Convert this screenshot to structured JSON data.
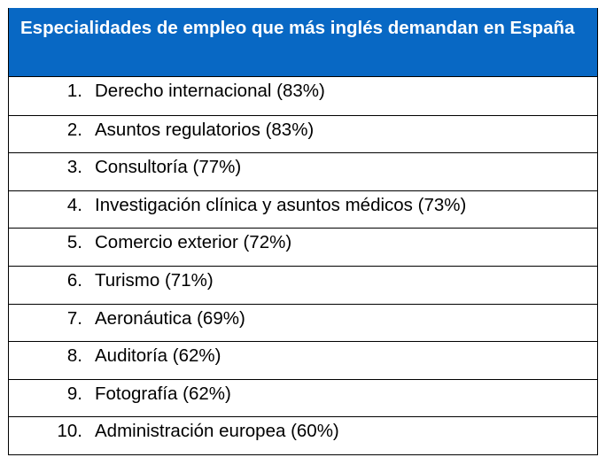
{
  "table": {
    "title": "Especialidades de empleo que más inglés demandan en España",
    "header_color": "#0868C4",
    "rows": [
      {
        "num": "1.",
        "label": "Derecho internacional (83%)"
      },
      {
        "num": "2.",
        "label": "Asuntos regulatorios (83%)"
      },
      {
        "num": "3.",
        "label": "Consultoría (77%)"
      },
      {
        "num": "4.",
        "label": "Investigación clínica y asuntos médicos (73%)"
      },
      {
        "num": "5.",
        "label": "Comercio exterior (72%)"
      },
      {
        "num": "6.",
        "label": "Turismo (71%)"
      },
      {
        "num": "7.",
        "label": "Aeronáutica (69%)"
      },
      {
        "num": "8.",
        "label": "Auditoría (62%)"
      },
      {
        "num": "9.",
        "label": "Fotografía (62%)"
      },
      {
        "num": "10.",
        "label": "Administración europea (60%)"
      }
    ]
  }
}
